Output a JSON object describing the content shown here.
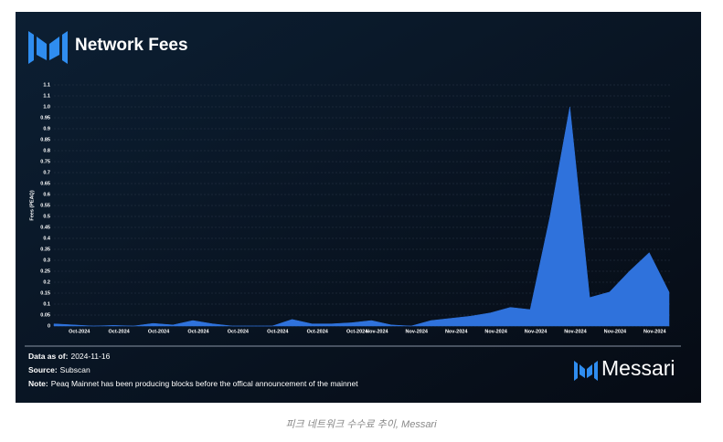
{
  "chart_data": {
    "type": "area",
    "title": "Network Fees",
    "y_label": "Fees (PEAQ)",
    "categories": [
      null,
      "Oct-2024",
      null,
      "Oct-2024",
      null,
      "Oct-2024",
      null,
      "Oct-2024",
      null,
      "Oct-2024",
      null,
      "Oct-2024",
      null,
      "Oct-2024",
      null,
      "Oct-2024",
      "Nov-2024",
      null,
      "Nov-2024",
      null,
      "Nov-2024",
      null,
      "Nov-2024",
      null,
      "Nov-2024",
      null,
      "Nov-2024",
      null,
      "Nov-2024",
      null,
      "Nov-2024",
      null
    ],
    "series": [
      {
        "name": "Network Fees",
        "color": "#2f72dc",
        "values": [
          0.01,
          0.005,
          0,
          0.003,
          0,
          0.012,
          0.005,
          0.025,
          0.01,
          0,
          0,
          0,
          0.03,
          0.01,
          0.01,
          0.015,
          0.025,
          0.005,
          0,
          0.025,
          0.035,
          0.045,
          0.06,
          0.085,
          0.075,
          0.5,
          1.0,
          0.13,
          0.155,
          0.25,
          0.335,
          0.155
        ]
      }
    ],
    "ylim": [
      0,
      1.1
    ],
    "yticks": [
      0,
      0.05,
      0.1,
      0.15,
      0.2,
      0.25,
      0.3,
      0.35,
      0.4,
      0.45,
      0.5,
      0.55,
      0.6,
      0.65,
      0.7,
      0.75,
      0.8,
      0.85,
      0.9,
      0.95,
      {
        "value": 1,
        "label": "1.0"
      },
      {
        "value": 1.05,
        "label": "1.1"
      },
      1.1
    ],
    "grid": true,
    "footer": {
      "data_as_of_label": "Data as of:",
      "data_as_of": "2024-11-16",
      "source_label": "Source:",
      "source": "Subscan",
      "note_label": "Note:",
      "note": "Peaq Mainnet has been producing blocks before the offical announcement of the mainnet",
      "brand": "Messari"
    },
    "caption": "피크 네트워크 수수료 추이, Messari"
  }
}
